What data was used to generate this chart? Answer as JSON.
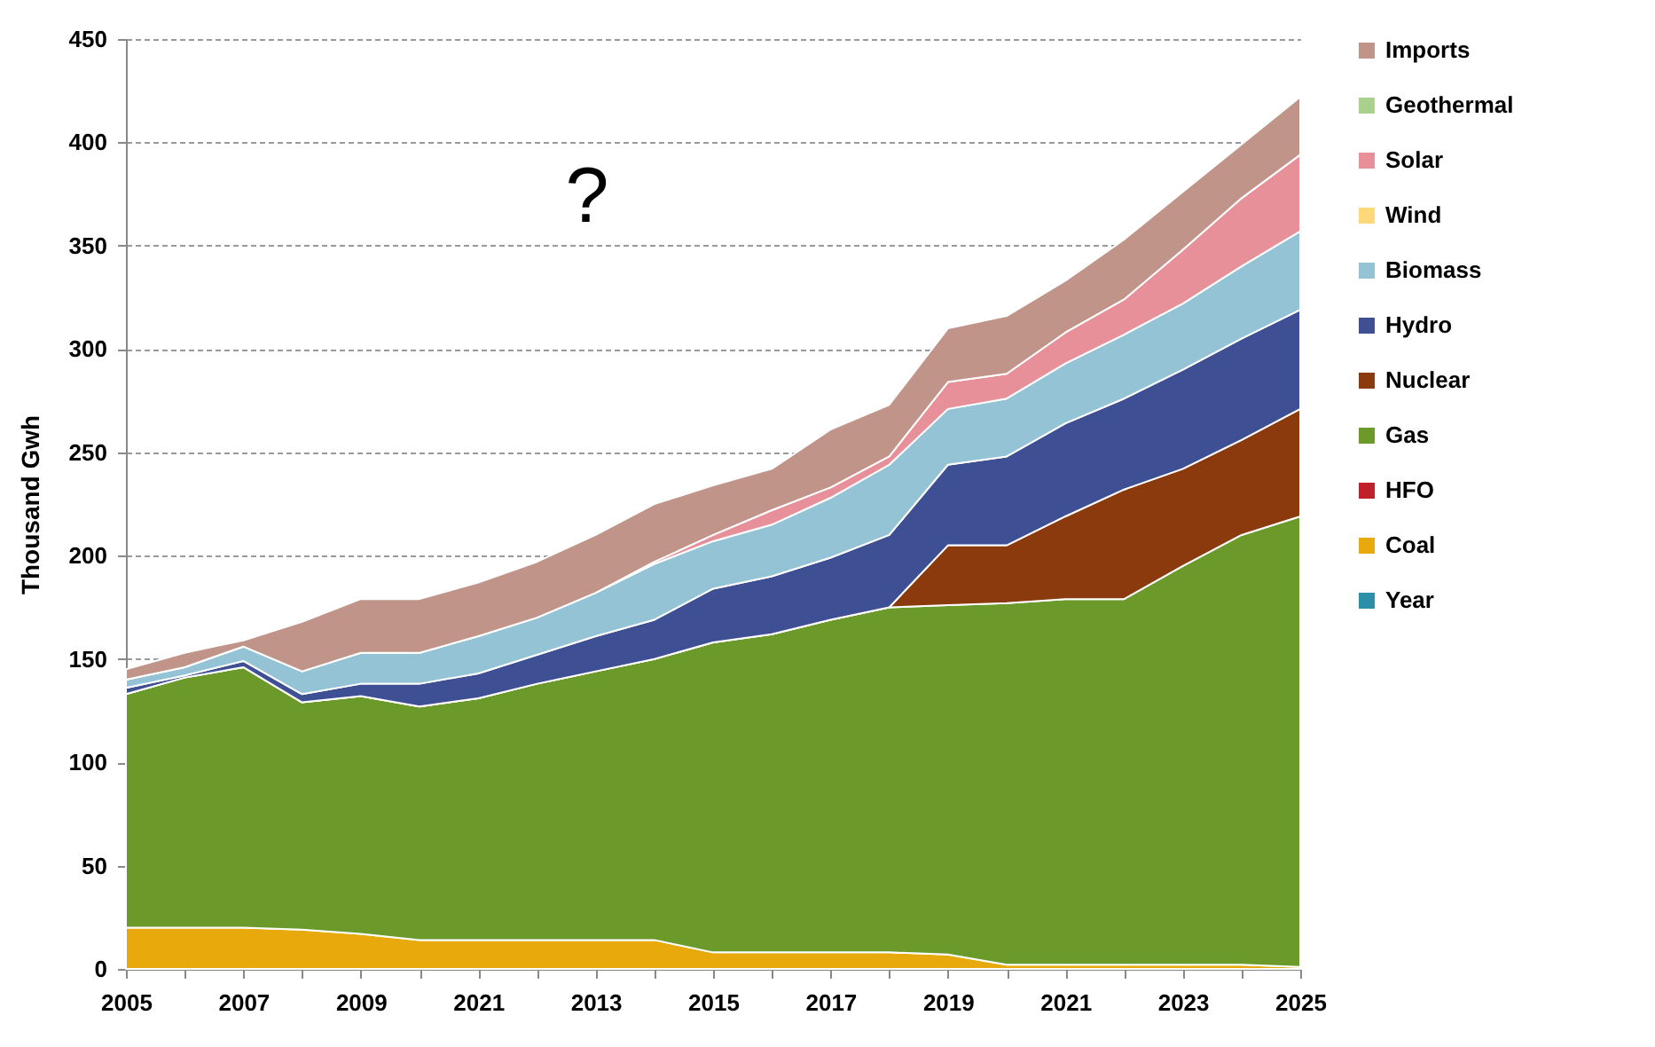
{
  "chart_data": {
    "type": "area",
    "stacked": true,
    "ylabel": "Thousand Gwh",
    "categories": [
      "2005",
      null,
      "2007",
      null,
      "2009",
      null,
      "2021",
      null,
      "2013",
      null,
      "2015",
      null,
      "2017",
      null,
      "2019",
      null,
      "2021",
      null,
      "2023",
      null,
      "2025"
    ],
    "ylim": [
      0,
      450
    ],
    "yticks": [
      0,
      50,
      100,
      150,
      200,
      250,
      300,
      350,
      400,
      450
    ],
    "grid": "y",
    "legend": "right",
    "annotations": [
      "?"
    ],
    "series": [
      {
        "name": "Year",
        "color": "#2b8fa8",
        "values": [
          null,
          null,
          null,
          null,
          null,
          null,
          null,
          null,
          null,
          null,
          null,
          null,
          null,
          null,
          null,
          null,
          null,
          null,
          null,
          null,
          null
        ]
      },
      {
        "name": "Coal",
        "color": "#e8a90c",
        "values": [
          20,
          20,
          20,
          19,
          17,
          14,
          14,
          14,
          14,
          14,
          8,
          8,
          8,
          8,
          7,
          2,
          2,
          2,
          2,
          2,
          1
        ]
      },
      {
        "name": "HFO",
        "color": "#c0202a",
        "values": [
          null,
          null,
          null,
          null,
          null,
          null,
          null,
          null,
          null,
          null,
          null,
          null,
          null,
          null,
          null,
          null,
          null,
          null,
          null,
          null,
          null
        ]
      },
      {
        "name": "Gas",
        "color": "#6b9a2a",
        "values": [
          113,
          121,
          126,
          110,
          115,
          113,
          117,
          124,
          130,
          136,
          150,
          154,
          161,
          167,
          169,
          175,
          177,
          177,
          193,
          208,
          218
        ]
      },
      {
        "name": "Nuclear",
        "color": "#8b3a0e",
        "values": [
          0,
          0,
          0,
          0,
          0,
          0,
          0,
          0,
          0,
          0,
          0,
          0,
          0,
          0,
          29,
          28,
          40,
          53,
          47,
          46,
          52
        ]
      },
      {
        "name": "Hydro",
        "color": "#3f4f93",
        "values": [
          3,
          1,
          3,
          4,
          6,
          11,
          12,
          14,
          17,
          19,
          26,
          28,
          30,
          35,
          39,
          43,
          45,
          44,
          48,
          49,
          48
        ]
      },
      {
        "name": "Biomass",
        "color": "#93c3d4",
        "values": [
          4,
          4,
          7,
          11,
          15,
          15,
          18,
          18,
          21,
          27,
          23,
          25,
          29,
          34,
          27,
          28,
          29,
          31,
          32,
          35,
          38
        ]
      },
      {
        "name": "Wind",
        "color": "#ffd87a",
        "values": [
          null,
          null,
          null,
          null,
          null,
          null,
          null,
          null,
          null,
          null,
          null,
          null,
          null,
          null,
          null,
          null,
          null,
          null,
          null,
          null,
          null
        ]
      },
      {
        "name": "Solar",
        "color": "#e8909a",
        "values": [
          0,
          0,
          0,
          0,
          0,
          0,
          0,
          0,
          0,
          1,
          3,
          7,
          5,
          4,
          13,
          12,
          15,
          17,
          26,
          33,
          37
        ]
      },
      {
        "name": "Geothermal",
        "color": "#a9d18e",
        "values": [
          null,
          null,
          null,
          null,
          null,
          null,
          null,
          null,
          null,
          null,
          null,
          null,
          null,
          null,
          null,
          null,
          null,
          null,
          null,
          null,
          null
        ]
      },
      {
        "name": "Imports",
        "color": "#c09488",
        "values": [
          5,
          7,
          3,
          24,
          26,
          26,
          26,
          27,
          28,
          28,
          24,
          20,
          28,
          25,
          26,
          28,
          25,
          29,
          28,
          26,
          28
        ]
      }
    ]
  }
}
